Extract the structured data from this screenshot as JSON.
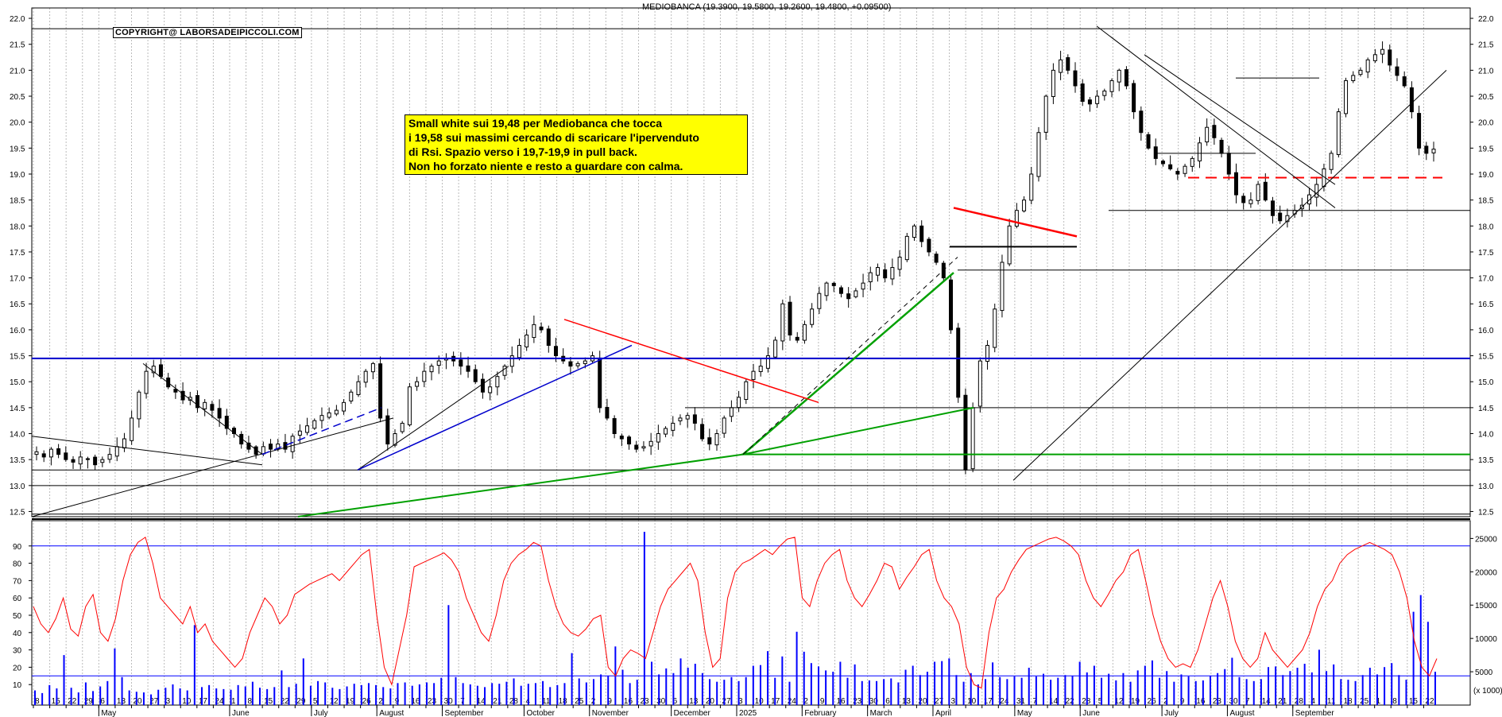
{
  "header": {
    "title": "MEDIOBANCA",
    "ohlc": "(19.3900, 19.5800, 19.2600, 19.4800, +0.09500)"
  },
  "copyright": "COPYRIGHT@ LABORSADEIPICCOLI.COM",
  "comment": {
    "lines": [
      "Small white sui 19,48 per Mediobanca che tocca",
      "i 19,58 sui massimi cercando di scaricare l'ipervenduto",
      "di Rsi. Spazio verso i 19,7-19,9 in pull back.",
      "Non ho forzato niente e resto a guardare con calma."
    ]
  },
  "colors": {
    "candle": "#000000",
    "rsi": "#ff0000",
    "volume": "#0000ff",
    "support_blue": "#0000cc",
    "trend_green": "#00a000",
    "resistance_red": "#ff0000",
    "annotation_bg": "#ffff00",
    "grid": "#bbbbbb"
  },
  "chart_data": [
    {
      "type": "candlestick",
      "title": "MEDIOBANCA",
      "ylim": [
        12.4,
        22.2
      ],
      "y_ticks": [
        "12.5",
        "13.0",
        "13.5",
        "14.0",
        "14.5",
        "15.0",
        "15.5",
        "16.0",
        "16.5",
        "17.0",
        "17.5",
        "18.0",
        "18.5",
        "19.0",
        "19.5",
        "20.0",
        "20.5",
        "21.0",
        "21.5",
        "22.0"
      ],
      "x_day_labels": [
        "8",
        "15",
        "22",
        "29",
        "6",
        "13",
        "20",
        "27",
        "3",
        "10",
        "17",
        "24",
        "1",
        "8",
        "15",
        "22",
        "29",
        "5",
        "12",
        "19",
        "26",
        "2",
        "9",
        "16",
        "23",
        "30",
        "7",
        "14",
        "21",
        "28",
        "4",
        "11",
        "18",
        "25",
        "2",
        "9",
        "16",
        "23",
        "30",
        "6",
        "13",
        "20",
        "27",
        "3",
        "10",
        "17",
        "24",
        "2",
        "9",
        "16",
        "23",
        "30",
        "6",
        "13",
        "20",
        "27",
        "3",
        "10",
        "17",
        "24",
        "31",
        "7",
        "14",
        "22",
        "28",
        "5",
        "12",
        "19",
        "26",
        "2",
        "9",
        "16",
        "23",
        "30",
        "7",
        "14",
        "21",
        "28",
        "4",
        "11",
        "18",
        "25",
        "1",
        "8",
        "15",
        "22"
      ],
      "x_month_labels": [
        "May",
        "June",
        "July",
        "August",
        "September",
        "October",
        "November",
        "December",
        "2025",
        "February",
        "March",
        "April",
        "May",
        "June",
        "July",
        "August",
        "September"
      ],
      "close_profile": [
        [
          13.65,
          13.55,
          13.7,
          13.6,
          13.5,
          13.45,
          13.55,
          13.5,
          13.4,
          13.5,
          13.6,
          13.75,
          13.9,
          14.3,
          14.8,
          15.2,
          15.3,
          15.1,
          14.9,
          14.8,
          14.65,
          14.7,
          14.5,
          14.6,
          14.45,
          14.3,
          14.1,
          14.0,
          13.8,
          13.7,
          13.6,
          13.75,
          13.7,
          13.8,
          13.7,
          13.95,
          14.05,
          14.15,
          14.25,
          14.35,
          14.4,
          14.45,
          14.6,
          14.8,
          15.0,
          15.2,
          15.35,
          14.3,
          13.8,
          14.0,
          14.2,
          14.9,
          15.0,
          15.2,
          15.3,
          15.4,
          15.45,
          15.4,
          15.3,
          15.2,
          15.0,
          14.8,
          14.9,
          15.1,
          15.3,
          15.5,
          15.7,
          15.9,
          16.1,
          16.0,
          15.7,
          15.5,
          15.4,
          15.3,
          15.35,
          15.4,
          15.5,
          14.5,
          14.3,
          14.0,
          13.9,
          13.8,
          13.7,
          13.75,
          13.85,
          14.0,
          14.1,
          14.2,
          14.3,
          14.35,
          14.2,
          13.9,
          13.8,
          14.0,
          14.3,
          14.5,
          14.7,
          15.0,
          15.2,
          15.3,
          15.5,
          15.8,
          16.5,
          15.9,
          15.8,
          16.1,
          16.4,
          16.7,
          16.9,
          16.85,
          16.7,
          16.6,
          16.75,
          16.9,
          17.1,
          17.2,
          17.0,
          17.2,
          17.4,
          17.8,
          18.0,
          17.7,
          17.5,
          17.3,
          17.0,
          16.0,
          14.7,
          13.3,
          14.5,
          15.4,
          15.7,
          16.4,
          17.3,
          18.0,
          18.3,
          18.5,
          19.0,
          19.8,
          20.5,
          21.0,
          21.2,
          21.0,
          20.7,
          20.4,
          20.35,
          20.5,
          20.6,
          20.8,
          21.0,
          20.7,
          20.2,
          19.8,
          19.5,
          19.3,
          19.2,
          19.1,
          19.0,
          19.15,
          19.3,
          19.6,
          19.9,
          19.7,
          19.4,
          19.0,
          18.6,
          18.45,
          18.5,
          18.8,
          18.5,
          18.2,
          18.1,
          18.2,
          18.3,
          18.4,
          18.6,
          18.8,
          19.1,
          19.4,
          20.2,
          20.8,
          20.9,
          21.0,
          21.2,
          21.3,
          21.4,
          21.1,
          20.9,
          20.7,
          20.2,
          19.5,
          19.4,
          19.48
        ]
      ]
    },
    {
      "type": "line",
      "name": "RSI",
      "ylim": [
        0,
        100
      ],
      "y_ticks": [
        "10",
        "20",
        "30",
        "40",
        "50",
        "60",
        "70",
        "80",
        "90"
      ],
      "reference_lines": [
        90,
        15
      ],
      "values": [
        55,
        45,
        40,
        48,
        60,
        42,
        38,
        55,
        62,
        40,
        35,
        48,
        70,
        85,
        92,
        95,
        80,
        60,
        55,
        50,
        45,
        55,
        40,
        45,
        35,
        30,
        25,
        20,
        25,
        40,
        50,
        60,
        55,
        45,
        50,
        62,
        65,
        68,
        70,
        72,
        74,
        70,
        75,
        80,
        85,
        88,
        50,
        20,
        10,
        30,
        50,
        78,
        80,
        82,
        84,
        86,
        82,
        75,
        60,
        50,
        40,
        35,
        50,
        70,
        80,
        85,
        88,
        92,
        90,
        70,
        55,
        45,
        40,
        38,
        42,
        48,
        50,
        20,
        15,
        25,
        30,
        28,
        25,
        40,
        55,
        65,
        70,
        75,
        80,
        70,
        40,
        20,
        25,
        60,
        75,
        80,
        82,
        85,
        88,
        85,
        90,
        94,
        95,
        60,
        55,
        70,
        80,
        85,
        88,
        70,
        60,
        55,
        62,
        70,
        80,
        78,
        65,
        72,
        78,
        85,
        88,
        70,
        60,
        55,
        45,
        20,
        10,
        8,
        40,
        60,
        65,
        75,
        82,
        88,
        90,
        92,
        94,
        95,
        93,
        90,
        85,
        70,
        60,
        55,
        62,
        70,
        75,
        85,
        88,
        70,
        50,
        35,
        25,
        20,
        22,
        20,
        30,
        45,
        60,
        70,
        55,
        35,
        25,
        20,
        25,
        40,
        30,
        25,
        20,
        25,
        30,
        40,
        55,
        65,
        70,
        80,
        85,
        88,
        90,
        92,
        90,
        88,
        85,
        75,
        60,
        35,
        20,
        15,
        25
      ]
    },
    {
      "type": "bar",
      "name": "Volume",
      "ylim": [
        0,
        26000
      ],
      "y_ticks": [
        "5000",
        "10000",
        "15000",
        "20000",
        "25000"
      ],
      "unit_label": "(x 1000)",
      "values": [
        2200,
        1800,
        3000,
        2500,
        7500,
        2600,
        1900,
        3400,
        2100,
        2800,
        3600,
        8500,
        4200,
        2200,
        2000,
        1900,
        1600,
        2300,
        2600,
        3100,
        2500,
        2200,
        12000,
        2700,
        3000,
        2500,
        2400,
        2300,
        3000,
        2800,
        3500,
        2600,
        2400,
        2700,
        5200,
        2700,
        3200,
        7000,
        2900,
        3600,
        3400,
        2600,
        2400,
        2800,
        3200,
        3000,
        3300,
        3000,
        2700,
        2500,
        3300,
        3400,
        2900,
        3100,
        3400,
        3300,
        4100,
        15000,
        4200,
        3300,
        3100,
        2900,
        2700,
        3300,
        3200,
        3500,
        4000,
        2900,
        3200,
        3300,
        3600,
        2700,
        3000,
        3300,
        7800,
        4000,
        3400,
        3900,
        4600,
        4400,
        8800,
        5300,
        3300,
        3800,
        26000,
        6500,
        4600,
        5500,
        4800,
        7000,
        5600,
        6200,
        4800,
        3900,
        3500,
        3800,
        4200,
        3600,
        4200,
        5900,
        6000,
        8100,
        4100,
        7300,
        3500,
        11000,
        8000,
        6300,
        5800,
        5200,
        5000,
        6500,
        4100,
        6100,
        3600,
        3700,
        3600,
        3900,
        4000,
        3400,
        5300,
        5900,
        4500,
        5000,
        6500,
        6600,
        7000,
        4500,
        3500,
        4800,
        3100,
        3900,
        6400,
        4200,
        3900,
        4300,
        4100,
        5600,
        4300,
        4700,
        3800,
        4100,
        4500,
        4400,
        6500,
        4900,
        5900,
        4100,
        4700,
        3700,
        4800,
        3500,
        5200,
        5900,
        6700,
        4100,
        5100,
        3500,
        4600,
        4300,
        3600,
        3700,
        4400,
        4800,
        5400,
        7100,
        4200,
        3900,
        3600,
        3900,
        5700,
        5800,
        4500,
        5100,
        5600,
        6200,
        4900,
        8300,
        5100,
        6100,
        3900,
        3800,
        3600,
        4500,
        5600,
        4600,
        5700,
        6300,
        4500,
        3800,
        14000,
        16500,
        12500,
        5000
      ]
    }
  ]
}
